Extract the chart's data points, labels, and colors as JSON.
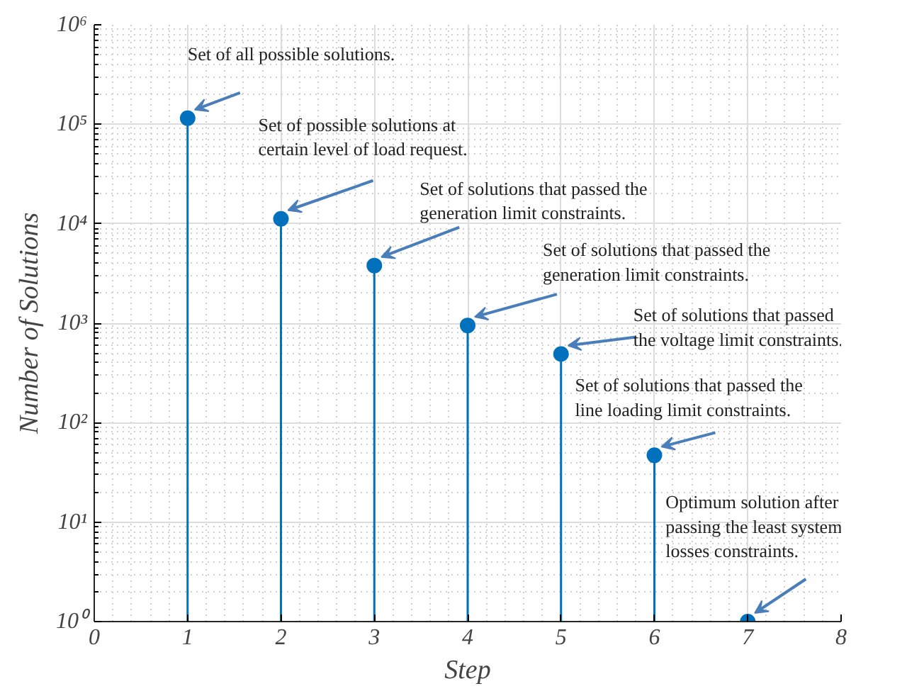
{
  "chart_data": {
    "type": "lollipop",
    "xlabel": "Step",
    "ylabel": "Number of Solutions",
    "x": [
      1,
      2,
      3,
      4,
      5,
      6,
      7
    ],
    "series": [
      {
        "color": "#0072bd",
        "values": [
          115000,
          11200,
          3800,
          950,
          490,
          47,
          1
        ]
      }
    ],
    "log": "y",
    "grid": true,
    "marker": "circle",
    "xlim": [
      0,
      8
    ],
    "xticks": [
      0,
      1,
      2,
      3,
      4,
      5,
      6,
      7,
      8
    ],
    "ylim": [
      1,
      1000000
    ],
    "yticks": [
      {
        "value": 1,
        "label": "10⁰"
      },
      {
        "value": 10,
        "label": "10¹"
      },
      {
        "value": 100,
        "label": "10²"
      },
      {
        "value": 1000,
        "label": "10³"
      },
      {
        "value": 10000,
        "label": "10⁴"
      },
      {
        "value": 100000,
        "label": "10⁵"
      },
      {
        "value": 1000000,
        "label": "10⁶"
      }
    ],
    "annotations": [
      {
        "text": "Set of all possible solutions.",
        "x": 1,
        "y": 115000
      },
      {
        "text": "Set of possible solutions at\ncertain level of load request.",
        "x": 2,
        "y": 11200
      },
      {
        "text": "Set of solutions that passed the\ngeneration limit constraints.",
        "x": 3,
        "y": 3800
      },
      {
        "text": "Set of solutions that passed the\ngeneration limit constraints.",
        "x": 4,
        "y": 950
      },
      {
        "text": "Set of solutions that passed\nthe voltage limit constraints.",
        "x": 5,
        "y": 490
      },
      {
        "text": "Set of solutions that passed the\nline loading limit constraints.",
        "x": 6,
        "y": 47
      },
      {
        "text": "Optimum solution after\npassing the least system\nlosses constraints.",
        "x": 7,
        "y": 1
      }
    ]
  }
}
